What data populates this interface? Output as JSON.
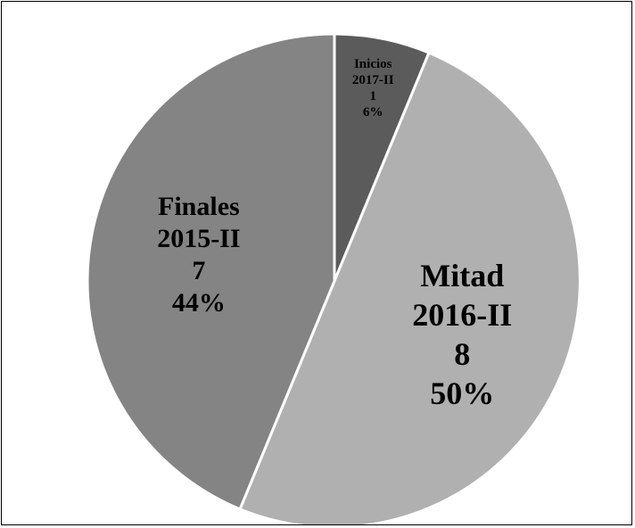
{
  "chart_data": {
    "type": "pie",
    "title": "",
    "legend": "none",
    "slices": [
      {
        "category": "Inicios",
        "period": "2017-II",
        "value": 1,
        "percent_label": "6%",
        "percent": 6.25,
        "color": "#5b5b5b"
      },
      {
        "category": "Mitad",
        "period": "2016-II",
        "value": 8,
        "percent_label": "50%",
        "percent": 50,
        "color": "#b0b0b0"
      },
      {
        "category": "Finales",
        "period": "2015-II",
        "value": 7,
        "percent_label": "44%",
        "percent": 43.75,
        "color": "#848484"
      }
    ]
  }
}
